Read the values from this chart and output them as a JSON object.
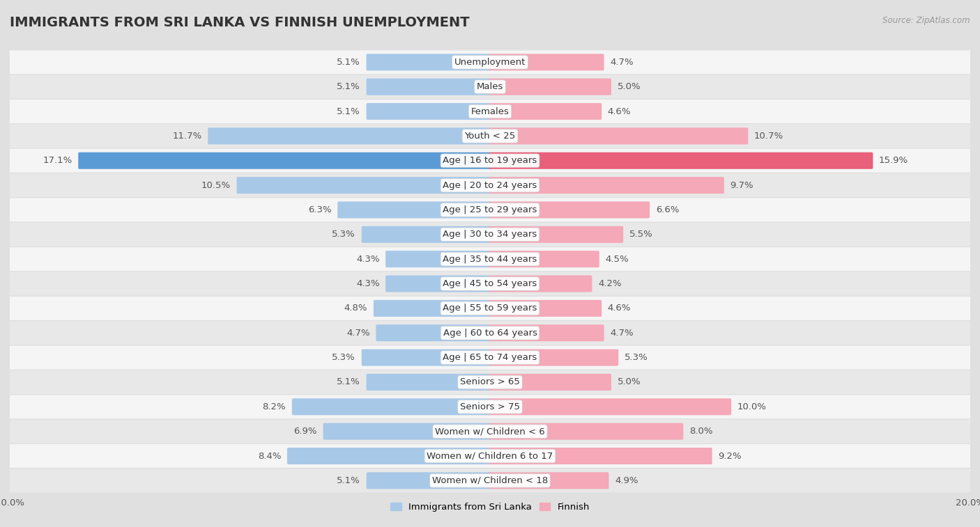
{
  "title": "IMMIGRANTS FROM SRI LANKA VS FINNISH UNEMPLOYMENT",
  "source": "Source: ZipAtlas.com",
  "categories": [
    "Unemployment",
    "Males",
    "Females",
    "Youth < 25",
    "Age | 16 to 19 years",
    "Age | 20 to 24 years",
    "Age | 25 to 29 years",
    "Age | 30 to 34 years",
    "Age | 35 to 44 years",
    "Age | 45 to 54 years",
    "Age | 55 to 59 years",
    "Age | 60 to 64 years",
    "Age | 65 to 74 years",
    "Seniors > 65",
    "Seniors > 75",
    "Women w/ Children < 6",
    "Women w/ Children 6 to 17",
    "Women w/ Children < 18"
  ],
  "left_values": [
    5.1,
    5.1,
    5.1,
    11.7,
    17.1,
    10.5,
    6.3,
    5.3,
    4.3,
    4.3,
    4.8,
    4.7,
    5.3,
    5.1,
    8.2,
    6.9,
    8.4,
    5.1
  ],
  "right_values": [
    4.7,
    5.0,
    4.6,
    10.7,
    15.9,
    9.7,
    6.6,
    5.5,
    4.5,
    4.2,
    4.6,
    4.7,
    5.3,
    5.0,
    10.0,
    8.0,
    9.2,
    4.9
  ],
  "left_color": "#a8c8e8",
  "right_color": "#f4a8b8",
  "left_highlight_color": "#5b9bd5",
  "right_highlight_color": "#e8607a",
  "row_color_even": "#f5f5f5",
  "row_color_odd": "#e8e8e8",
  "background_color": "#e0e0e0",
  "max_value": 20.0,
  "legend_left": "Immigrants from Sri Lanka",
  "legend_right": "Finnish",
  "title_fontsize": 14,
  "label_fontsize": 9.5,
  "value_fontsize": 9.5
}
